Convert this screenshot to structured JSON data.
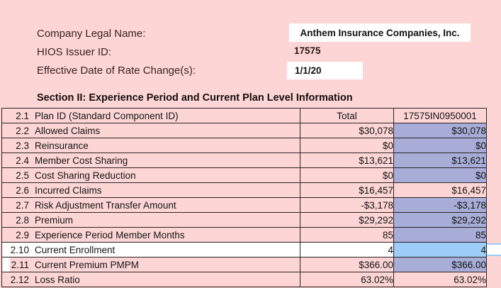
{
  "colors": {
    "page_pink": "#fdd5d5",
    "cell_pink": "#fdd5d5",
    "cell_purple": "#a7add7",
    "cell_blue": "#9dcdf8",
    "cell_white": "#ffffff",
    "grid_border": "#2b2323",
    "selection_blue": "#9dcdf8"
  },
  "header": {
    "fields": [
      {
        "label": "Company Legal Name:",
        "value": "Anthem Insurance Companies, Inc."
      },
      {
        "label": "HIOS Issuer ID:",
        "value": "17575"
      },
      {
        "label": "Effective Date of Rate Change(s):",
        "value": "1/1/20"
      }
    ]
  },
  "section": {
    "title": "Section II: Experience Period and Current Plan Level Information"
  },
  "table": {
    "columns": [
      "item",
      "Total",
      "17575IN0950001"
    ],
    "rows": [
      {
        "num": "2.1",
        "label": "Plan ID (Standard Component ID)",
        "total": "Total",
        "plan": "17575IN0950001",
        "center": true,
        "row_bg": "pink",
        "plan_bg": "pink"
      },
      {
        "num": "2.2",
        "label": "Allowed Claims",
        "total": "$30,078",
        "plan": "$30,078",
        "row_bg": "pink",
        "plan_bg": "purple"
      },
      {
        "num": "2.3",
        "label": "Reinsurance",
        "total": "$0",
        "plan": "$0",
        "row_bg": "pink",
        "plan_bg": "purple"
      },
      {
        "num": "2.4",
        "label": "Member Cost Sharing",
        "total": "$13,621",
        "plan": "$13,621",
        "row_bg": "pink",
        "plan_bg": "purple"
      },
      {
        "num": "2.5",
        "label": "Cost Sharing Reduction",
        "total": "$0",
        "plan": "$0",
        "row_bg": "pink",
        "plan_bg": "purple"
      },
      {
        "num": "2.6",
        "label": "Incurred Claims",
        "total": "$16,457",
        "plan": "$16,457",
        "row_bg": "pink",
        "plan_bg": "pink"
      },
      {
        "num": "2.7",
        "label": "Risk Adjustment Transfer Amount",
        "total": "-$3,178",
        "plan": "-$3,178",
        "row_bg": "pink",
        "plan_bg": "purple"
      },
      {
        "num": "2.8",
        "label": "Premium",
        "total": "$29,292",
        "plan": "$29,292",
        "row_bg": "pink",
        "plan_bg": "purple"
      },
      {
        "num": "2.9",
        "label": "Experience Period Member Months",
        "total": "85",
        "plan": "85",
        "row_bg": "pink",
        "plan_bg": "purple"
      },
      {
        "num": "2.10",
        "label": "Current Enrollment",
        "total": "4",
        "plan": "4",
        "row_bg": "white",
        "plan_bg": "blue",
        "selected": true
      },
      {
        "num": "2.11",
        "label": "Current Premium PMPM",
        "total": "$366.00",
        "plan": "$366.00",
        "row_bg": "pink",
        "plan_bg": "purple",
        "left_notch": true
      },
      {
        "num": "2.12",
        "label": "Loss Ratio",
        "total": "63.02%",
        "plan": "63.02%",
        "row_bg": "pink",
        "plan_bg": "pink"
      }
    ]
  }
}
